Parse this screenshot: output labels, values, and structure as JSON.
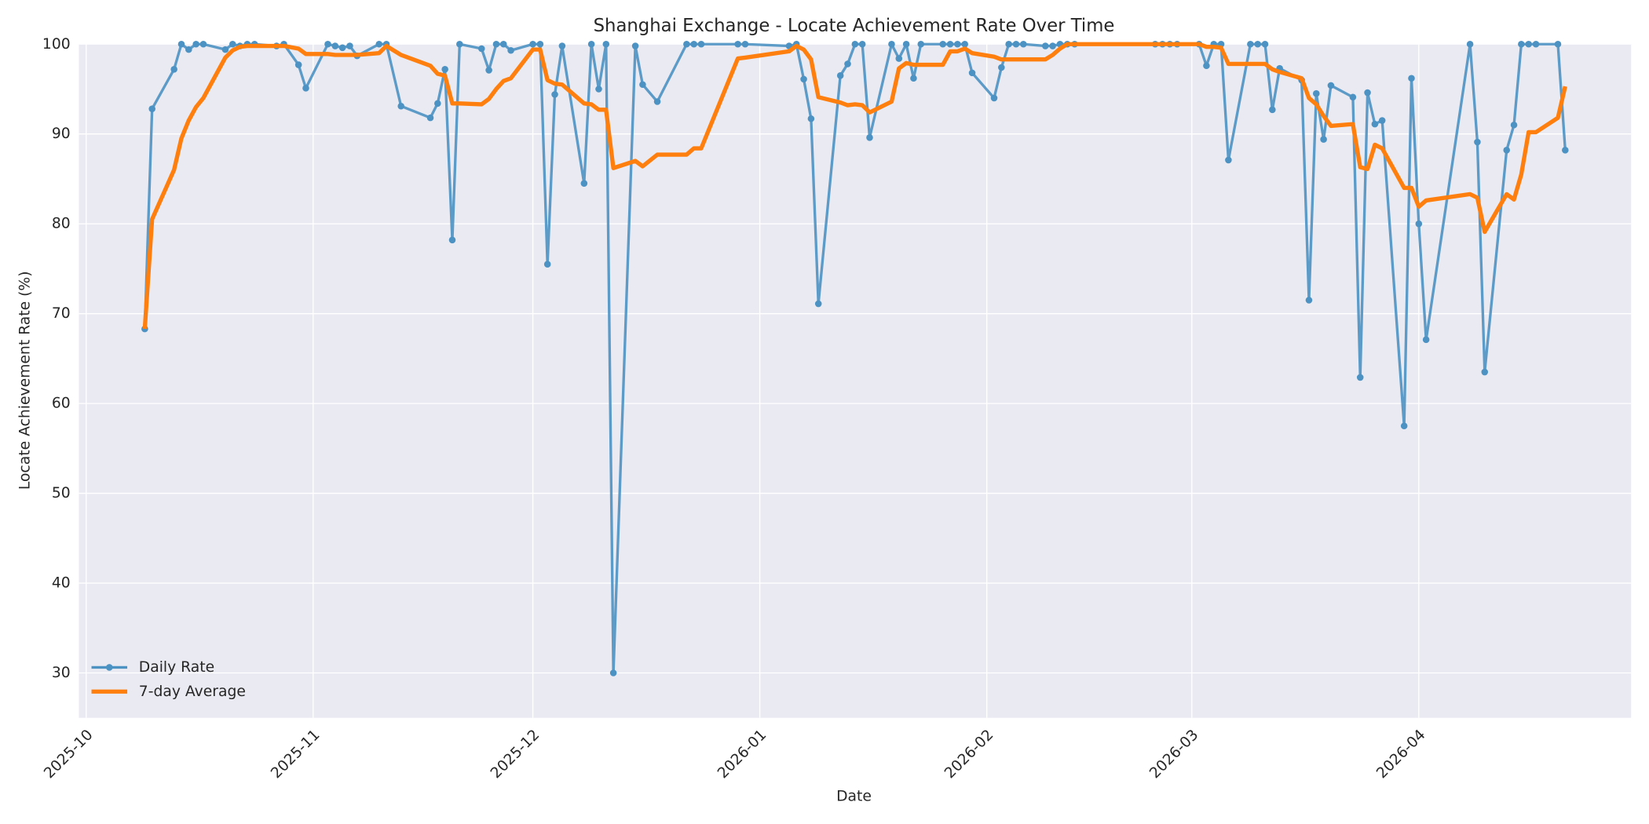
{
  "chart_data": {
    "type": "line",
    "title": "Shanghai Exchange - Locate Achievement Rate Over Time",
    "x_label": "Date",
    "y_label": "Locate Achievement Rate (%)",
    "x": [
      "2025-10-09",
      "2025-10-10",
      "2025-10-13",
      "2025-10-14",
      "2025-10-15",
      "2025-10-16",
      "2025-10-17",
      "2025-10-20",
      "2025-10-21",
      "2025-10-22",
      "2025-10-23",
      "2025-10-24",
      "2025-10-27",
      "2025-10-28",
      "2025-10-30",
      "2025-10-31",
      "2025-11-03",
      "2025-11-04",
      "2025-11-05",
      "2025-11-06",
      "2025-11-07",
      "2025-11-10",
      "2025-11-11",
      "2025-11-13",
      "2025-11-17",
      "2025-11-18",
      "2025-11-19",
      "2025-11-20",
      "2025-11-21",
      "2025-11-24",
      "2025-11-25",
      "2025-11-26",
      "2025-11-27",
      "2025-11-28",
      "2025-12-01",
      "2025-12-02",
      "2025-12-03",
      "2025-12-04",
      "2025-12-05",
      "2025-12-08",
      "2025-12-09",
      "2025-12-10",
      "2025-12-11",
      "2025-12-12",
      "2025-12-15",
      "2025-12-16",
      "2025-12-18",
      "2025-12-22",
      "2025-12-23",
      "2025-12-24",
      "2025-12-29",
      "2025-12-30",
      "2026-01-05",
      "2026-01-06",
      "2026-01-07",
      "2026-01-08",
      "2026-01-09",
      "2026-01-12",
      "2026-01-13",
      "2026-01-14",
      "2026-01-15",
      "2026-01-16",
      "2026-01-19",
      "2026-01-20",
      "2026-01-21",
      "2026-01-22",
      "2026-01-23",
      "2026-01-26",
      "2026-01-27",
      "2026-01-28",
      "2026-01-29",
      "2026-01-30",
      "2026-02-02",
      "2026-02-03",
      "2026-02-04",
      "2026-02-05",
      "2026-02-06",
      "2026-02-09",
      "2026-02-10",
      "2026-02-11",
      "2026-02-12",
      "2026-02-13",
      "2026-02-24",
      "2026-02-25",
      "2026-02-26",
      "2026-02-27",
      "2026-03-02",
      "2026-03-03",
      "2026-03-04",
      "2026-03-05",
      "2026-03-06",
      "2026-03-09",
      "2026-03-10",
      "2026-03-11",
      "2026-03-12",
      "2026-03-13",
      "2026-03-16",
      "2026-03-17",
      "2026-03-18",
      "2026-03-19",
      "2026-03-20",
      "2026-03-23",
      "2026-03-24",
      "2026-03-25",
      "2026-03-26",
      "2026-03-27",
      "2026-03-30",
      "2026-03-31",
      "2026-04-01",
      "2026-04-02",
      "2026-04-08",
      "2026-04-09",
      "2026-04-10",
      "2026-04-13",
      "2026-04-14",
      "2026-04-15",
      "2026-04-16",
      "2026-04-17",
      "2026-04-20",
      "2026-04-21"
    ],
    "series": [
      {
        "name": "Daily Rate",
        "color": "#4c92c3",
        "marker": true,
        "line_width": 2.5,
        "values": [
          68.3,
          92.8,
          97.2,
          100,
          99.4,
          100,
          100,
          99.4,
          100,
          99.8,
          100,
          100,
          99.8,
          100,
          97.7,
          95.1,
          100,
          99.8,
          99.6,
          99.8,
          98.7,
          100,
          100,
          93.1,
          91.8,
          93.4,
          97.2,
          78.2,
          100,
          99.5,
          97.1,
          100,
          100,
          99.3,
          100,
          100,
          75.5,
          94.4,
          99.8,
          84.5,
          100,
          95,
          100,
          30,
          99.8,
          95.5,
          93.6,
          100,
          100,
          100,
          100,
          100,
          99.8,
          100,
          96.1,
          91.7,
          71.1,
          96.5,
          97.8,
          100,
          100,
          89.6,
          100,
          98.4,
          100,
          96.2,
          100,
          100,
          100,
          100,
          100,
          96.8,
          94,
          97.4,
          100,
          100,
          100,
          99.8,
          99.8,
          100,
          100,
          100,
          100,
          100,
          100,
          100,
          100,
          97.6,
          100,
          100,
          87.1,
          100,
          100,
          100,
          92.7,
          97.3,
          96,
          71.5,
          94.5,
          89.4,
          95.4,
          94.1,
          62.9,
          94.6,
          91.1,
          91.5,
          57.5,
          96.2,
          80,
          67.1,
          100,
          89.1,
          63.5,
          88.2,
          91,
          100,
          100,
          100,
          100,
          88.2
        ]
      },
      {
        "name": "7-day Average",
        "color": "#ff7f0e",
        "marker": false,
        "line_width": 4,
        "values": [
          68.3,
          80.5,
          86,
          89.5,
          91.5,
          93,
          94,
          98.5,
          99.3,
          99.7,
          99.8,
          99.8,
          99.8,
          99.8,
          99.5,
          98.9,
          98.9,
          98.8,
          98.8,
          98.8,
          98.8,
          99,
          99.8,
          98.8,
          97.6,
          96.7,
          96.5,
          93.4,
          93.4,
          93.3,
          93.9,
          95,
          95.9,
          96.2,
          99.4,
          99.4,
          96,
          95.6,
          95.5,
          93.4,
          93.3,
          92.7,
          92.7,
          86.2,
          87,
          86.4,
          87.7,
          87.7,
          88.4,
          88.4,
          98.4,
          98.5,
          99.2,
          99.8,
          99.4,
          98.3,
          94.1,
          93.5,
          93.2,
          93.3,
          93.2,
          92.4,
          93.6,
          97.3,
          97.9,
          97.7,
          97.7,
          97.7,
          99.2,
          99.2,
          99.5,
          99,
          98.6,
          98.3,
          98.3,
          98.3,
          98.3,
          98.3,
          98.8,
          99.5,
          100,
          100,
          100,
          100,
          100,
          100,
          100,
          99.7,
          99.7,
          99.6,
          97.8,
          97.8,
          97.8,
          97.8,
          97.2,
          96.9,
          96.2,
          94,
          93.3,
          92,
          90.9,
          91.1,
          86.3,
          86.1,
          88.8,
          88.4,
          84,
          84,
          81.9,
          82.6,
          83.3,
          82.9,
          79.1,
          83.3,
          82.7,
          85.5,
          90.2,
          90.2,
          91.8,
          95.3
        ]
      }
    ],
    "xlim": [
      "2025-09-30",
      "2026-04-30"
    ],
    "xticks": [
      "2025-10",
      "2025-11",
      "2025-12",
      "2026-01",
      "2026-02",
      "2026-03",
      "2026-04"
    ],
    "ylim": [
      25,
      100
    ],
    "yticks": [
      30,
      40,
      50,
      60,
      70,
      80,
      90,
      100
    ],
    "grid": true,
    "legend": "lower left"
  }
}
